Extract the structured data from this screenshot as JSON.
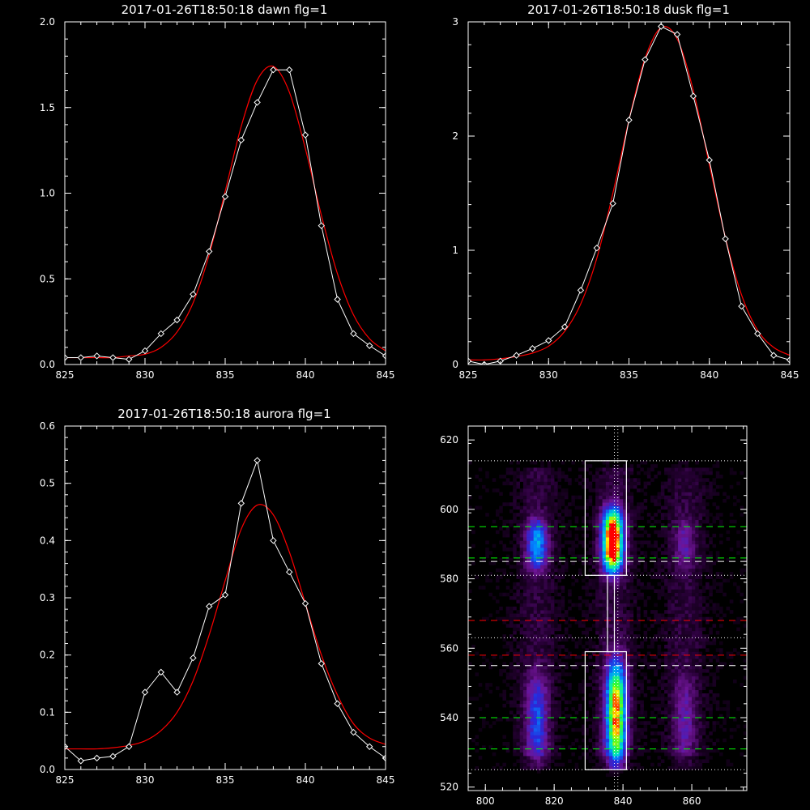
{
  "colors": {
    "background": "#000000",
    "axis": "#ffffff",
    "data_line": "#ffffff",
    "fit_line": "#ff0000",
    "green_dash": "#00ff00",
    "red_dash": "#ff0000",
    "white_dash": "#ffffff"
  },
  "chart_data": [
    {
      "type": "line",
      "title": "2017-01-26T18:50:18 dawn flg=1",
      "xlim": [
        825,
        845
      ],
      "ylim": [
        0,
        2.0
      ],
      "xticks": [
        825,
        830,
        835,
        840,
        845
      ],
      "yticks": [
        0.0,
        0.5,
        1.0,
        1.5,
        2.0
      ],
      "ytick_labels": [
        "0.0",
        "0.5",
        "1.0",
        "1.5",
        "2.0"
      ],
      "grid": false,
      "series": [
        {
          "role": "data",
          "marker": "diamond",
          "x": [
            825,
            826,
            827,
            828,
            829,
            830,
            831,
            832,
            833,
            834,
            835,
            836,
            837,
            838,
            839,
            840,
            841,
            842,
            843,
            844,
            845
          ],
          "y": [
            0.04,
            0.04,
            0.05,
            0.04,
            0.03,
            0.08,
            0.18,
            0.26,
            0.41,
            0.66,
            0.98,
            1.31,
            1.53,
            1.72,
            1.72,
            1.34,
            0.81,
            0.38,
            0.18,
            0.11,
            0.05
          ]
        },
        {
          "role": "fit",
          "x": [
            825,
            826,
            827,
            828,
            829,
            830,
            831,
            832,
            833,
            834,
            835,
            836,
            837,
            838,
            839,
            840,
            841,
            842,
            843,
            844,
            845
          ],
          "y": [
            0.04,
            0.04,
            0.04,
            0.04,
            0.05,
            0.06,
            0.1,
            0.19,
            0.36,
            0.64,
            1.01,
            1.39,
            1.66,
            1.74,
            1.59,
            1.26,
            0.87,
            0.53,
            0.29,
            0.15,
            0.08
          ]
        }
      ]
    },
    {
      "type": "line",
      "title": "2017-01-26T18:50:18 dusk flg=1",
      "xlim": [
        825,
        845
      ],
      "ylim": [
        0,
        3
      ],
      "xticks": [
        825,
        830,
        835,
        840,
        845
      ],
      "yticks": [
        0,
        1,
        2,
        3
      ],
      "ytick_labels": [
        "0",
        "1",
        "2",
        "3"
      ],
      "grid": false,
      "series": [
        {
          "role": "data",
          "marker": "diamond",
          "x": [
            825,
            826,
            827,
            828,
            829,
            830,
            831,
            832,
            833,
            834,
            835,
            836,
            837,
            838,
            839,
            840,
            841,
            842,
            843,
            844,
            845
          ],
          "y": [
            0.03,
            0.0,
            0.03,
            0.08,
            0.14,
            0.21,
            0.33,
            0.65,
            1.02,
            1.41,
            2.14,
            2.67,
            2.96,
            2.89,
            2.35,
            1.79,
            1.1,
            0.51,
            0.27,
            0.08,
            0.04
          ]
        },
        {
          "role": "fit",
          "x": [
            825,
            826,
            827,
            828,
            829,
            830,
            831,
            832,
            833,
            834,
            835,
            836,
            837,
            838,
            839,
            840,
            841,
            842,
            843,
            844,
            845
          ],
          "y": [
            0.04,
            0.04,
            0.05,
            0.07,
            0.1,
            0.16,
            0.29,
            0.53,
            0.93,
            1.5,
            2.14,
            2.68,
            2.95,
            2.85,
            2.4,
            1.75,
            1.11,
            0.61,
            0.3,
            0.15,
            0.08
          ]
        }
      ]
    },
    {
      "type": "line",
      "title": "2017-01-26T18:50:18 aurora flg=1",
      "xlim": [
        825,
        845
      ],
      "ylim": [
        0,
        0.6
      ],
      "xticks": [
        825,
        830,
        835,
        840,
        845
      ],
      "yticks": [
        0.0,
        0.1,
        0.2,
        0.3,
        0.4,
        0.5,
        0.6
      ],
      "ytick_labels": [
        "0.0",
        "0.1",
        "0.2",
        "0.3",
        "0.4",
        "0.5",
        "0.6"
      ],
      "grid": false,
      "series": [
        {
          "role": "data",
          "marker": "diamond",
          "x": [
            825,
            826,
            827,
            828,
            829,
            830,
            831,
            832,
            833,
            834,
            835,
            836,
            837,
            838,
            839,
            840,
            841,
            842,
            843,
            844,
            845
          ],
          "y": [
            0.04,
            0.015,
            0.02,
            0.023,
            0.04,
            0.135,
            0.17,
            0.135,
            0.195,
            0.285,
            0.305,
            0.465,
            0.54,
            0.4,
            0.345,
            0.29,
            0.185,
            0.115,
            0.065,
            0.04,
            0.02
          ]
        },
        {
          "role": "fit",
          "x": [
            825,
            826,
            827,
            828,
            829,
            830,
            831,
            832,
            833,
            834,
            835,
            836,
            837,
            838,
            839,
            840,
            841,
            842,
            843,
            844,
            845
          ],
          "y": [
            0.036,
            0.036,
            0.036,
            0.038,
            0.042,
            0.05,
            0.068,
            0.1,
            0.155,
            0.235,
            0.33,
            0.42,
            0.462,
            0.445,
            0.38,
            0.29,
            0.2,
            0.13,
            0.08,
            0.055,
            0.044
          ]
        }
      ]
    },
    {
      "type": "heatmap",
      "title": "",
      "xlim": [
        795,
        876
      ],
      "ylim": [
        519,
        624
      ],
      "xticks": [
        800,
        820,
        840,
        860
      ],
      "yticks": [
        520,
        540,
        560,
        580,
        600,
        620
      ],
      "colormap": "rainbow",
      "bands": [
        {
          "x": 815,
          "y": 590,
          "width": 7,
          "height": 14,
          "peak": 0.45
        },
        {
          "x": 837,
          "y": 591,
          "width": 7,
          "height": 18,
          "peak": 1.0
        },
        {
          "x": 858,
          "y": 590,
          "width": 7,
          "height": 14,
          "peak": 0.18
        },
        {
          "x": 815,
          "y": 539,
          "width": 7,
          "height": 26,
          "peak": 0.33
        },
        {
          "x": 838,
          "y": 541,
          "width": 7,
          "height": 30,
          "peak": 0.8
        },
        {
          "x": 858,
          "y": 539,
          "width": 7,
          "height": 26,
          "peak": 0.18
        }
      ],
      "boxes": [
        {
          "x0": 829,
          "x1": 841,
          "y0": 581,
          "y1": 614
        },
        {
          "x0": 829,
          "x1": 841,
          "y0": 525,
          "y1": 559
        }
      ],
      "connector": {
        "x0": 835.5,
        "x1": 837.5,
        "y0": 559,
        "y1": 581
      },
      "vertical_dotted_x": [
        837.5,
        838.5
      ],
      "hlines": [
        {
          "y": 614,
          "style": "dotted",
          "color": "white"
        },
        {
          "y": 595,
          "style": "dashed",
          "color": "green"
        },
        {
          "y": 586,
          "style": "dashed",
          "color": "green"
        },
        {
          "y": 585,
          "style": "dashed",
          "color": "white"
        },
        {
          "y": 581,
          "style": "dotted",
          "color": "white"
        },
        {
          "y": 568,
          "style": "dashed",
          "color": "red"
        },
        {
          "y": 563,
          "style": "dotted",
          "color": "white"
        },
        {
          "y": 558,
          "style": "dashed",
          "color": "red"
        },
        {
          "y": 555,
          "style": "dashed",
          "color": "white"
        },
        {
          "y": 540,
          "style": "dashed",
          "color": "green"
        },
        {
          "y": 531,
          "style": "dashed",
          "color": "green"
        },
        {
          "y": 525,
          "style": "dotted",
          "color": "white"
        }
      ]
    }
  ]
}
